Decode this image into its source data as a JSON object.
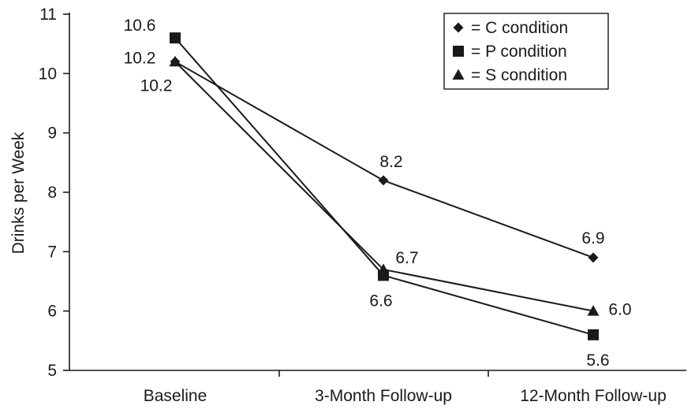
{
  "chart_data": {
    "type": "line",
    "title": "",
    "xlabel": "",
    "ylabel": "Drinks per Week",
    "categories": [
      "Baseline",
      "3-Month Follow-up",
      "12-Month Follow-up"
    ],
    "ylim": [
      5,
      11
    ],
    "yticks": [
      "5",
      "6",
      "7",
      "8",
      "9",
      "10",
      "11"
    ],
    "grid": false,
    "legend_position": "top-right",
    "series": [
      {
        "name": "C condition",
        "legend_text": "= C condition",
        "marker": "diamond",
        "values": [
          10.2,
          8.2,
          6.9
        ],
        "labels": [
          "10.2",
          "8.2",
          "6.9"
        ]
      },
      {
        "name": "P condition",
        "legend_text": "= P condition",
        "marker": "square",
        "values": [
          10.6,
          6.6,
          5.6
        ],
        "labels": [
          "10.6",
          "6.6",
          "5.6"
        ]
      },
      {
        "name": "S condition",
        "legend_text": "= S condition",
        "marker": "triangle",
        "values": [
          10.2,
          6.7,
          6.0
        ],
        "labels": [
          "10.2",
          "6.7",
          "6.0"
        ]
      }
    ]
  }
}
